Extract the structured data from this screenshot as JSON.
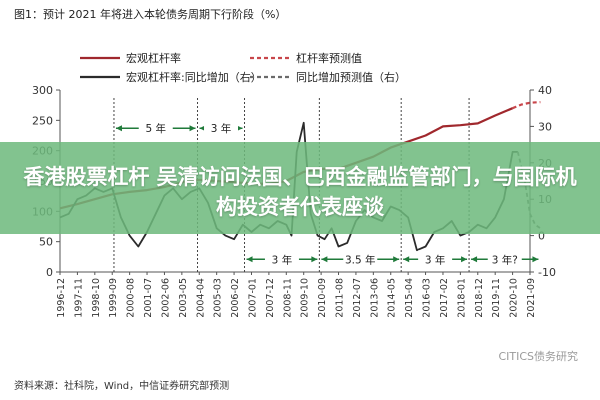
{
  "figure_title": "图1：预计 2021 年将进入本轮债务周期下行阶段（%）",
  "source": "资料来源：社科院，Wind，中信证券研究部预测",
  "watermark": "CITICS债务研究",
  "headline": "香港股票杠杆 吴清访问法国、巴西金融监管部门，与国际机构投资者代表座谈",
  "chart_data": {
    "type": "line",
    "legend": [
      {
        "name": "宏观杠杆率",
        "style": "solid",
        "color": "#a0282d"
      },
      {
        "name": "杠杆率预测值",
        "style": "dashed",
        "color": "#c8464b"
      },
      {
        "name": "宏观杠杆率:同比增加（右）",
        "style": "solid",
        "color": "#2b2b2b"
      },
      {
        "name": "同比增加预测值（右）",
        "style": "dashed",
        "color": "#6a6a6a"
      }
    ],
    "x_categories": [
      "1996-12",
      "1997-11",
      "1998-10",
      "1999-09",
      "2000-08",
      "2001-07",
      "2002-06",
      "2003-05",
      "2004-04",
      "2005-03",
      "2006-02",
      "2007-01",
      "2007-12",
      "2008-11",
      "2009-10",
      "2010-09",
      "2011-08",
      "2012-07",
      "2013-06",
      "2014-05",
      "2015-04",
      "2016-03",
      "2017-02",
      "2018-01",
      "2018-12",
      "2019-11",
      "2020-10",
      "2021-09"
    ],
    "y_left": {
      "ticks": [
        0,
        50,
        100,
        150,
        200,
        250,
        300
      ],
      "range": [
        0,
        300
      ]
    },
    "y_right": {
      "ticks": [
        -10,
        0,
        10,
        20,
        30,
        40
      ],
      "range": [
        -10,
        40
      ]
    },
    "series": [
      {
        "name": "宏观杠杆率",
        "axis": "left",
        "x": [
          0,
          1,
          2,
          3,
          4,
          5,
          6,
          7,
          8,
          9,
          10,
          11,
          12,
          13,
          14,
          15,
          16,
          17,
          18,
          19,
          20,
          21,
          22,
          23,
          24,
          25,
          26
        ],
        "values": [
          105,
          112,
          120,
          128,
          132,
          135,
          140,
          148,
          152,
          150,
          148,
          146,
          145,
          150,
          165,
          170,
          170,
          180,
          190,
          205,
          215,
          225,
          240,
          242,
          245,
          258,
          270
        ]
      },
      {
        "name": "杠杆率预测值",
        "axis": "left",
        "x": [
          26,
          26.5,
          27,
          27.6
        ],
        "values": [
          270,
          276,
          279,
          280
        ]
      },
      {
        "name": "宏观杠杆率:同比增加（右）",
        "axis": "right",
        "x": [
          0,
          0.5,
          1,
          1.5,
          2,
          2.5,
          3,
          3.5,
          4,
          4.5,
          5,
          5.5,
          6,
          6.5,
          7,
          7.5,
          8,
          8.5,
          9,
          9.5,
          10,
          10.5,
          11,
          11.5,
          12,
          12.5,
          13,
          13.3,
          13.6,
          14,
          14.4,
          14.8,
          15.2,
          15.6,
          16,
          16.5,
          17,
          17.5,
          18,
          18.5,
          19,
          19.5,
          20,
          20.5,
          21,
          21.5,
          22,
          22.5,
          23,
          23.5,
          24,
          24.5,
          25,
          25.5,
          26,
          26.3
        ],
        "values": [
          5,
          6,
          10,
          11,
          13,
          12,
          13,
          5,
          0,
          -3,
          1,
          6,
          11,
          13,
          10,
          12,
          13,
          9,
          2,
          0,
          -1,
          3,
          1,
          3,
          2,
          4,
          3,
          0,
          23,
          31,
          6,
          0,
          -1,
          2,
          -3,
          -2,
          4,
          7,
          5,
          4,
          8,
          7,
          5,
          -4,
          -3,
          1,
          2,
          4,
          0,
          1,
          3,
          2,
          5,
          10,
          23,
          23
        ]
      },
      {
        "name": "同比增加预测值（右）",
        "axis": "right",
        "x": [
          26.3,
          26.7,
          27,
          27.3,
          27.6
        ],
        "values": [
          23,
          15,
          6,
          3,
          2
        ]
      }
    ],
    "annotations": [
      {
        "text": "5 年",
        "from": 3.1,
        "to": 7.9,
        "level": 29.5,
        "axis": "right"
      },
      {
        "text": "3 年",
        "from": 7.9,
        "to": 10.6,
        "level": 29.5,
        "axis": "right"
      },
      {
        "text": "3 年",
        "from": 10.6,
        "to": 14.9,
        "level": -6.5,
        "axis": "right"
      },
      {
        "text": "3.5 年",
        "from": 14.9,
        "to": 19.6,
        "level": -6.5,
        "axis": "right"
      },
      {
        "text": "3 年",
        "from": 19.6,
        "to": 23.5,
        "level": -6.5,
        "axis": "right"
      },
      {
        "text": "3 年?",
        "from": 23.5,
        "to": 27.6,
        "level": -6.5,
        "axis": "right"
      }
    ],
    "cycle_markers_x": [
      3.1,
      7.9,
      10.6,
      14.9,
      19.6,
      23.5
    ],
    "grid": false
  }
}
